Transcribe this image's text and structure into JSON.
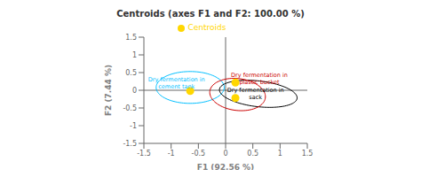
{
  "chart_data": {
    "type": "scatter",
    "title": "Centroids (axes F1 and F2: 100.00 %)",
    "x_label": "F1 (92.56 %)",
    "y_label": "F2 (7.44 %)",
    "xlim": [
      -1.5,
      1.5
    ],
    "ylim": [
      -1.5,
      1.5
    ],
    "xticks": [
      -1.5,
      -1.0,
      -0.5,
      0.0,
      0.5,
      1.0,
      1.5
    ],
    "yticks": [
      -1.5,
      -1.0,
      -0.5,
      0.0,
      0.5,
      1.0,
      1.5
    ],
    "series": [
      {
        "name": "Centroids",
        "type": "scatter",
        "color": "#FFD700",
        "marker": "circle",
        "x": [
          -0.65,
          0.18,
          0.18
        ],
        "values": [
          -0.02,
          -0.22,
          0.22
        ]
      }
    ],
    "ellipses": [
      {
        "cx": -0.65,
        "cy": 0.08,
        "width": 1.25,
        "height": 0.9,
        "angle": 0,
        "color": "#00BFFF"
      },
      {
        "cx": 0.6,
        "cy": -0.1,
        "width": 1.45,
        "height": 0.72,
        "angle": -12,
        "color": "#000000"
      },
      {
        "cx": 0.22,
        "cy": -0.12,
        "width": 1.05,
        "height": 0.88,
        "angle": -25,
        "color": "#CC0000"
      }
    ],
    "annotations": [
      {
        "x": -0.9,
        "y": 0.2,
        "text": "Dry fermentation in\ncement tank",
        "color": "#00BFFF"
      },
      {
        "x": 0.62,
        "y": 0.32,
        "text": "Dry fermentation in\nplastic bucket",
        "color": "#CC0000"
      },
      {
        "x": 0.55,
        "y": -0.1,
        "text": "Dry fermentation in\nsack",
        "color": "#000000"
      }
    ],
    "reference_lines": {
      "x": [
        0
      ],
      "y": [
        0
      ]
    },
    "legend": "top",
    "grid": false
  }
}
